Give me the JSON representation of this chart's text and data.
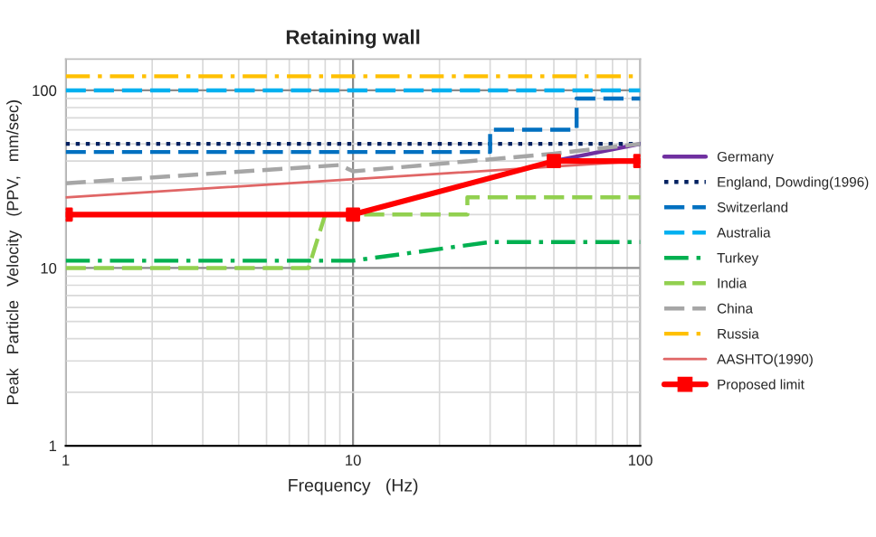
{
  "chart_data": {
    "type": "line",
    "title": "Retaining wall",
    "xlabel": "Frequency   (Hz)",
    "ylabel": "Peak   Particle   Velocity   (PPV,   mm/sec)",
    "log": "xy",
    "xlim": [
      1,
      100
    ],
    "ylim": [
      1,
      150
    ],
    "xticks": [
      1,
      10,
      100
    ],
    "yticks": [
      1,
      10,
      100
    ],
    "grid": true,
    "legend": "right",
    "marker": "none",
    "series": [
      {
        "name": "Germany",
        "color": "#7030a0",
        "line_style": "solid",
        "x": [
          50,
          100
        ],
        "values": [
          40,
          50
        ]
      },
      {
        "name": "England, Dowding(1996)",
        "color": "#002060",
        "line_style": "dotted",
        "x": [
          1,
          100
        ],
        "values": [
          50,
          50
        ]
      },
      {
        "name": "Switzerland",
        "color": "#0070c0",
        "line_style": "dashed",
        "x": [
          1,
          30,
          30,
          60,
          60,
          100
        ],
        "values": [
          45,
          45,
          60,
          60,
          90,
          90
        ]
      },
      {
        "name": "Australia",
        "color": "#00b0f0",
        "line_style": "dashed",
        "x": [
          1,
          100
        ],
        "values": [
          100,
          100
        ]
      },
      {
        "name": "Turkey",
        "color": "#00b050",
        "line_style": "dashdot",
        "x": [
          1,
          10,
          30,
          100
        ],
        "values": [
          11,
          11,
          14,
          14
        ]
      },
      {
        "name": "India",
        "color": "#92d050",
        "line_style": "dashed",
        "x": [
          1,
          7,
          8,
          25,
          25,
          100
        ],
        "values": [
          10,
          10,
          20,
          20,
          25,
          25
        ]
      },
      {
        "name": "China",
        "color": "#a6a6a6",
        "line_style": "dashed",
        "x": [
          1,
          9,
          10,
          50,
          100
        ],
        "values": [
          30,
          38,
          35,
          44,
          50
        ]
      },
      {
        "name": "Russia",
        "color": "#ffc000",
        "line_style": "dashdot",
        "x": [
          1,
          100
        ],
        "values": [
          120,
          120
        ]
      },
      {
        "name": "AASHTO(1990)",
        "color": "#e06666",
        "line_style": "solid",
        "x": [
          1,
          100
        ],
        "values": [
          25,
          40
        ]
      },
      {
        "name": "Proposed limit",
        "color": "#ff0000",
        "line_style": "solid",
        "marker": "square",
        "x": [
          1,
          10,
          50,
          100
        ],
        "values": [
          20,
          20,
          40,
          40
        ]
      }
    ]
  }
}
